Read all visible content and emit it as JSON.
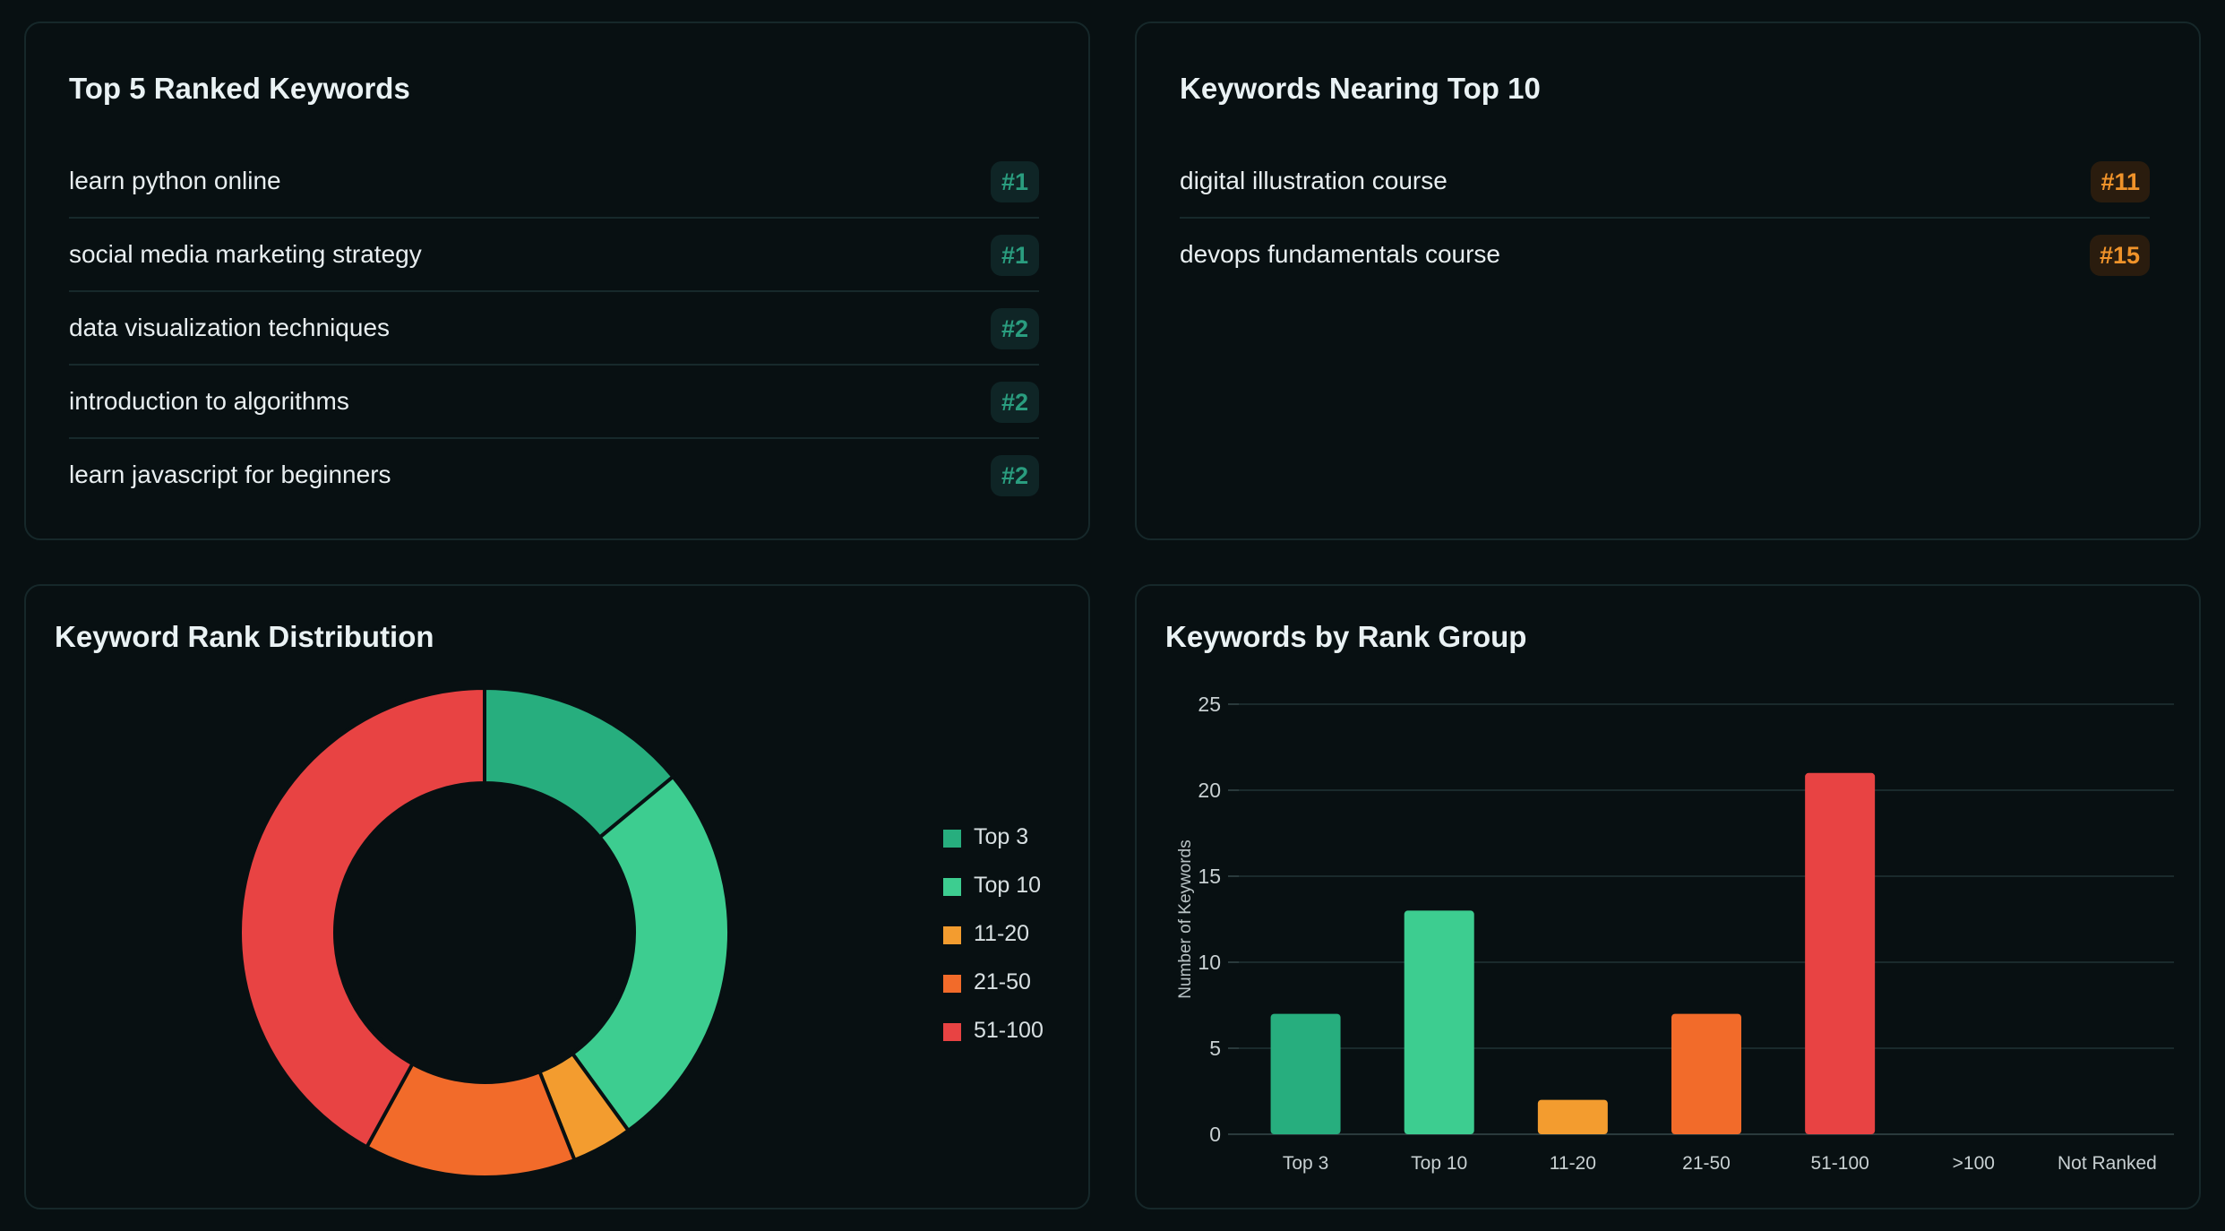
{
  "top_ranked": {
    "title": "Top 5 Ranked Keywords",
    "items": [
      {
        "keyword": "learn python online",
        "rank": "#1"
      },
      {
        "keyword": "social media marketing strategy",
        "rank": "#1"
      },
      {
        "keyword": "data visualization techniques",
        "rank": "#2"
      },
      {
        "keyword": "introduction to algorithms",
        "rank": "#2"
      },
      {
        "keyword": "learn javascript for beginners",
        "rank": "#2"
      }
    ]
  },
  "nearing_top": {
    "title": "Keywords Nearing Top 10",
    "items": [
      {
        "keyword": "digital illustration course",
        "rank": "#11"
      },
      {
        "keyword": "devops fundamentals course",
        "rank": "#15"
      }
    ]
  },
  "colors": {
    "top3": "#27ae7e",
    "top10": "#3dcd90",
    "r11_20": "#f39c2f",
    "r21_50": "#f26b2a",
    "r51_100": "#e84343",
    "green_badge_text": "#2a9d7f",
    "orange_badge_text": "#f0932a"
  },
  "chart_data": [
    {
      "type": "pie",
      "title": "Keyword Rank Distribution",
      "categories": [
        "Top 3",
        "Top 10",
        "11-20",
        "21-50",
        "51-100"
      ],
      "values": [
        7,
        13,
        2,
        7,
        21
      ],
      "colors": [
        "#27ae7e",
        "#3dcd90",
        "#f39c2f",
        "#f26b2a",
        "#e84343"
      ],
      "donut": true,
      "legend": "right"
    },
    {
      "type": "bar",
      "title": "Keywords by Rank Group",
      "categories": [
        "Top 3",
        "Top 10",
        "11-20",
        "21-50",
        "51-100",
        ">100",
        "Not Ranked"
      ],
      "values": [
        7,
        13,
        2,
        7,
        21,
        0,
        0
      ],
      "colors": [
        "#27ae7e",
        "#3dcd90",
        "#f39c2f",
        "#f26b2a",
        "#e84343",
        "#e84343",
        "#e84343"
      ],
      "xlabel": "",
      "ylabel": "Number of Keywords",
      "ylim": [
        0,
        25
      ],
      "yticks": [
        0,
        5,
        10,
        15,
        20,
        25
      ],
      "grid": true
    }
  ]
}
